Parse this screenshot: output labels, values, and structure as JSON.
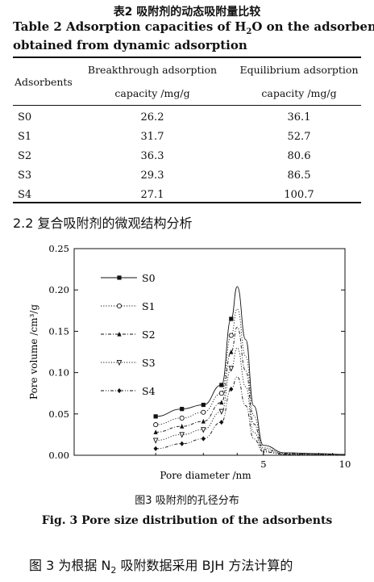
{
  "table": {
    "title_cn": "表2   吸附剂的动态吸附量比较",
    "title_en_line1_a": "Table 2   Adsorption capacities of H",
    "title_en_line1_sub": "2",
    "title_en_line1_b": "O on the adsorbents",
    "title_en_line2": "obtained from dynamic adsorption",
    "col_headers": {
      "adsorbents": "Adsorbents",
      "breakthrough_line1": "Breakthrough adsorption",
      "breakthrough_line2": "capacity /mg/g",
      "equilibrium_line1": "Equilibrium adsorption",
      "equilibrium_line2": "capacity /mg/g"
    },
    "rows": [
      {
        "name": "S0",
        "breakthrough": "26.2",
        "equilibrium": "36.1"
      },
      {
        "name": "S1",
        "breakthrough": "31.7",
        "equilibrium": "52.7"
      },
      {
        "name": "S2",
        "breakthrough": "36.3",
        "equilibrium": "80.6"
      },
      {
        "name": "S3",
        "breakthrough": "29.3",
        "equilibrium": "86.5"
      },
      {
        "name": "S4",
        "breakthrough": "27.1",
        "equilibrium": "100.7"
      }
    ]
  },
  "section_heading": "2.2   复合吸附剂的微观结构分析",
  "figure": {
    "caption_cn": "图3   吸附剂的孔径分布",
    "caption_en": "Fig. 3   Pore size distribution of the adsorbents"
  },
  "body_text": {
    "a": "图 3 为根据 N",
    "sub": "2",
    "b": " 吸附数据采用 BJH 方法计算的"
  },
  "chart_data": {
    "type": "line",
    "xlabel": "Pore diameter /nm",
    "ylabel": "Pore volume /cm³/g",
    "ylim": [
      0,
      0.25
    ],
    "yticks": [
      "0.00",
      "0.05",
      "0.10",
      "0.15",
      "0.20",
      "0.25"
    ],
    "xticks": [
      "5",
      "10"
    ],
    "x_scale": "log",
    "legend_position": "top-left",
    "series": [
      {
        "name": "S0",
        "marker": "square",
        "line": "solid",
        "x": [
          2.0,
          2.5,
          3.0,
          3.5,
          3.8,
          4.0,
          4.3,
          4.6,
          5.0,
          6.0,
          8.0,
          10.0
        ],
        "y": [
          0.047,
          0.056,
          0.061,
          0.085,
          0.165,
          0.204,
          0.14,
          0.06,
          0.012,
          0.003,
          0.002,
          0.001
        ]
      },
      {
        "name": "S1",
        "marker": "circle",
        "line": "dotted",
        "x": [
          2.0,
          2.5,
          3.0,
          3.5,
          3.8,
          4.0,
          4.3,
          4.6,
          5.0,
          6.0,
          8.0,
          10.0
        ],
        "y": [
          0.037,
          0.045,
          0.052,
          0.075,
          0.145,
          0.177,
          0.12,
          0.048,
          0.009,
          0.002,
          0.001,
          0.001
        ]
      },
      {
        "name": "S2",
        "marker": "triangle",
        "line": "dash-dot",
        "x": [
          2.0,
          2.5,
          3.0,
          3.5,
          3.8,
          4.0,
          4.3,
          4.6,
          5.0,
          6.0,
          8.0,
          10.0
        ],
        "y": [
          0.028,
          0.035,
          0.041,
          0.064,
          0.125,
          0.155,
          0.102,
          0.038,
          0.007,
          0.002,
          0.001,
          0.001
        ]
      },
      {
        "name": "S3",
        "marker": "triangle-down",
        "line": "dotted",
        "x": [
          2.0,
          2.5,
          3.0,
          3.5,
          3.8,
          4.0,
          4.3,
          4.6,
          5.0,
          6.0,
          8.0,
          10.0
        ],
        "y": [
          0.018,
          0.025,
          0.031,
          0.053,
          0.105,
          0.13,
          0.083,
          0.028,
          0.005,
          0.001,
          0.001,
          0.0
        ]
      },
      {
        "name": "S4",
        "marker": "diamond",
        "line": "dash-dot-dot",
        "x": [
          2.0,
          2.5,
          3.0,
          3.5,
          3.8,
          4.0,
          4.3,
          4.6,
          5.0,
          6.0,
          8.0,
          10.0
        ],
        "y": [
          0.008,
          0.014,
          0.02,
          0.04,
          0.08,
          0.095,
          0.06,
          0.02,
          0.004,
          0.001,
          0.0,
          0.0
        ]
      }
    ]
  }
}
